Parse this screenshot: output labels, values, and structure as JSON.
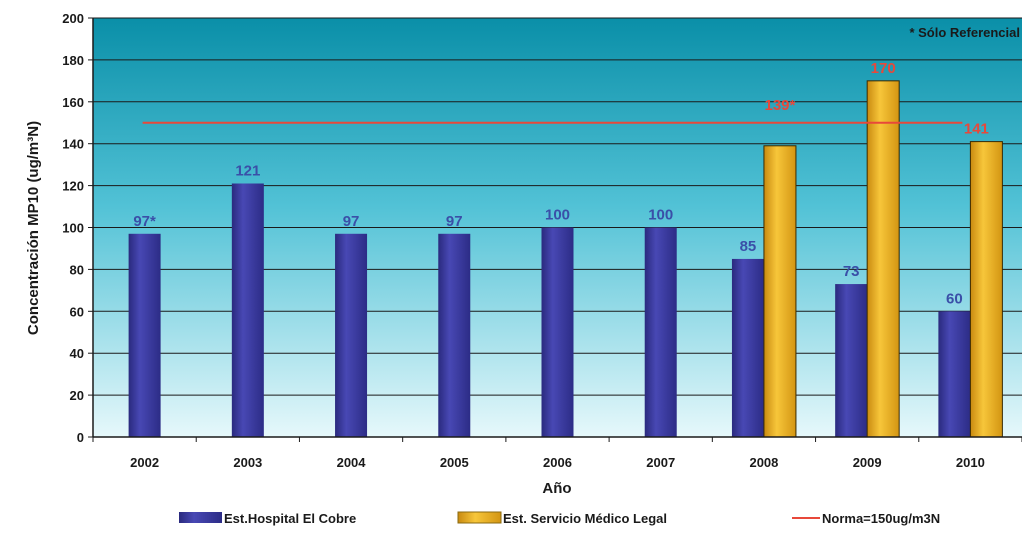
{
  "chart_data": {
    "type": "bar",
    "categories": [
      "2002",
      "2003",
      "2004",
      "2005",
      "2006",
      "2007",
      "2008",
      "2009",
      "2010"
    ],
    "series": [
      {
        "name": "Est.Hospital El Cobre",
        "values": [
          97,
          121,
          97,
          97,
          100,
          100,
          85,
          73,
          60
        ],
        "labels": [
          "97*",
          "121",
          "97",
          "97",
          "100",
          "100",
          "85",
          "73",
          "60"
        ],
        "color": "#3b3b9e",
        "label_color": "#3a4fa8"
      },
      {
        "name": "Est. Servicio Médico Legal",
        "values": [
          null,
          null,
          null,
          null,
          null,
          null,
          139,
          170,
          141
        ],
        "labels": [
          "",
          "",
          "",
          "",
          "",
          "",
          "139*",
          "170",
          "141"
        ],
        "color": "#f2b320",
        "label_color": "#e8483a"
      }
    ],
    "reference_line": {
      "name": "Norma=150ug/m3N",
      "value": 150,
      "color": "#e8483a"
    },
    "title": "",
    "xlabel": "Año",
    "ylabel": "Concentración MP10 (ug/m³N)",
    "ylim": [
      0,
      200
    ],
    "yticks": [
      0,
      20,
      40,
      60,
      80,
      100,
      120,
      140,
      160,
      180,
      200
    ],
    "grid": true,
    "legend_position": "bottom",
    "annotation": "* Sólo  Referencial",
    "colors": {
      "plot_background_top": "#0a8fa8",
      "plot_background_bottom": "#e6f8fb",
      "gridline": "#1a1a1a"
    }
  }
}
